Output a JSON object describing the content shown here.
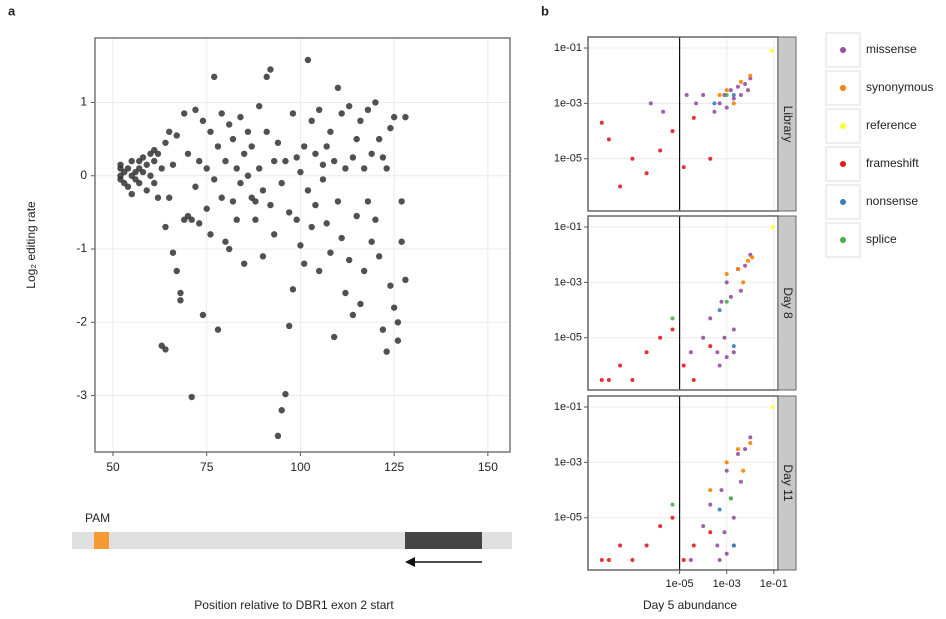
{
  "chart_data": [
    {
      "type": "scatter",
      "panel_label": "a",
      "ylabel": "Log₂ editing rate",
      "xlabel": "Position relative to DBR1 exon 2 start",
      "annotation": "PAM",
      "color": "#333333",
      "grid": true,
      "xlim": [
        45.2,
        155.9
      ],
      "ylim": [
        -3.77,
        1.88
      ],
      "xticks": [
        50,
        75,
        100,
        125,
        150
      ],
      "yticks": [
        -3,
        -2,
        -1,
        0,
        1
      ],
      "x": [
        52,
        52,
        52,
        52,
        53,
        53,
        54,
        54,
        55,
        55,
        55,
        56,
        56,
        57,
        57,
        57,
        58,
        58,
        59,
        59,
        60,
        60,
        61,
        61,
        61,
        62,
        62,
        63,
        63,
        64,
        64,
        64,
        65,
        65,
        66,
        66,
        67,
        67,
        68,
        68,
        69,
        69,
        70,
        70,
        71,
        71,
        72,
        72,
        73,
        73,
        74,
        74,
        75,
        75,
        76,
        76,
        77,
        77,
        78,
        78,
        79,
        79,
        80,
        80,
        81,
        81,
        82,
        82,
        83,
        83,
        84,
        84,
        85,
        85,
        86,
        86,
        87,
        87,
        88,
        88,
        89,
        89,
        90,
        90,
        91,
        91,
        92,
        92,
        93,
        93,
        94,
        94,
        95,
        95,
        96,
        96,
        97,
        97,
        98,
        98,
        99,
        99,
        100,
        100,
        101,
        101,
        102,
        102,
        103,
        103,
        104,
        104,
        105,
        105,
        106,
        106,
        107,
        107,
        108,
        108,
        109,
        109,
        110,
        110,
        111,
        111,
        112,
        112,
        113,
        113,
        114,
        114,
        115,
        115,
        116,
        116,
        117,
        117,
        118,
        118,
        119,
        119,
        120,
        120,
        121,
        121,
        122,
        122,
        123,
        123,
        124,
        124,
        125,
        125,
        126,
        126,
        127,
        127,
        128,
        128
      ],
      "values": [
        0.1,
        0,
        -0.05,
        0.15,
        0.05,
        -0.1,
        0.1,
        -0.15,
        0,
        0.2,
        -0.25,
        0.05,
        -0.05,
        0.1,
        0.2,
        -0.1,
        0.25,
        0.05,
        -0.2,
        0.15,
        0.3,
        0,
        0.35,
        -0.1,
        0.2,
        0.3,
        -0.3,
        -2.32,
        0.1,
        -2.37,
        0.45,
        -0.7,
        0.6,
        -0.3,
        -1.05,
        0.15,
        -1.3,
        0.55,
        -1.6,
        -1.7,
        0.85,
        -0.6,
        -0.55,
        0.3,
        -3.02,
        -0.6,
        0.9,
        -0.15,
        0.2,
        -0.65,
        -1.9,
        0.75,
        -0.45,
        0.1,
        0.6,
        -0.8,
        1.35,
        -0.05,
        -2.1,
        0.4,
        -0.3,
        0.85,
        0.2,
        -0.9,
        0.7,
        -1,
        0.5,
        -0.35,
        0.1,
        -0.6,
        0.8,
        -0.1,
        0.3,
        -1.2,
        0.6,
        0,
        -0.3,
        0.4,
        -0.6,
        -0.35,
        0.95,
        0.1,
        -0.2,
        -1.1,
        1.35,
        0.6,
        1.45,
        -0.4,
        0.2,
        -0.8,
        -3.55,
        0.45,
        -3.2,
        -0.1,
        -2.98,
        0.2,
        -2.05,
        -0.5,
        0.85,
        -1.55,
        -0.6,
        0.25,
        0.05,
        -0.95,
        0.4,
        -1.2,
        1.58,
        -0.2,
        0.75,
        -0.7,
        0.3,
        -0.4,
        0.9,
        -1.3,
        0.15,
        -0.05,
        -0.65,
        0.4,
        -1.05,
        0.6,
        -2.2,
        0.2,
        1.2,
        -0.35,
        0.85,
        -0.85,
        -1.6,
        0.1,
        0.95,
        -1.15,
        -1.9,
        0.25,
        0.5,
        -0.55,
        -1.75,
        0.75,
        -1.3,
        0.1,
        0.9,
        -0.35,
        -0.9,
        0.3,
        1,
        -0.6,
        0.5,
        -1.1,
        0.25,
        -2.1,
        -2.4,
        0.1,
        -1.5,
        0.65,
        0.8,
        -1.8,
        -2,
        -2.25,
        -0.35,
        -0.9,
        -1.42,
        0.8
      ]
    },
    {
      "type": "scatter",
      "panel_label": "b",
      "xlabel": "Day 5 abundance",
      "log_x": true,
      "log_y": true,
      "grid": true,
      "xlim": [
        1.3e-09,
        0.15
      ],
      "ylim": [
        1.3e-07,
        0.25
      ],
      "xticks": [
        {
          "value": 1e-05,
          "label": "1e-05"
        },
        {
          "value": 0.001,
          "label": "1e-03"
        },
        {
          "value": 0.1,
          "label": "1e-01"
        }
      ],
      "yticks": [
        {
          "value": 1e-05,
          "label": "1e-05"
        },
        {
          "value": 0.001,
          "label": "1e-03"
        },
        {
          "value": 0.1,
          "label": "1e-01"
        }
      ],
      "vline": 1e-05,
      "series": [
        {
          "name": "missense",
          "color": "#984ea3"
        },
        {
          "name": "synonymous",
          "color": "#ff7f00"
        },
        {
          "name": "reference",
          "color": "#ffff33"
        },
        {
          "name": "frameshift",
          "color": "#e41a1c"
        },
        {
          "name": "nonsense",
          "color": "#377eb8"
        },
        {
          "name": "splice",
          "color": "#4daf4a"
        }
      ],
      "facets": [
        {
          "label": "Library",
          "series": [
            {
              "x": [
                0.0003,
                0.0005,
                0.0008,
                0.001,
                0.0015,
                0.002,
                0.003,
                0.004,
                0.006,
                0.008,
                0.01,
                2e-05,
                5e-05,
                0.0001,
                6e-07,
                2e-06
              ],
              "values": [
                0.0005,
                0.001,
                0.002,
                0.0007,
                0.003,
                0.0015,
                0.004,
                0.002,
                0.005,
                0.003,
                0.008,
                0.002,
                0.001,
                0.002,
                0.001,
                0.0005
              ]
            },
            {
              "x": [
                0.0005,
                0.001,
                0.002,
                0.004,
                0.01
              ],
              "values": [
                0.002,
                0.003,
                0.001,
                0.006,
                0.01
              ]
            },
            {
              "x": [
                0.08
              ],
              "values": [
                0.08
              ]
            },
            {
              "x": [
                5e-09,
                1e-08,
                3e-08,
                1e-07,
                4e-07,
                1.5e-06,
                5e-06,
                1.5e-05,
                4e-05,
                0.0002
              ],
              "values": [
                0.0002,
                5e-05,
                1e-06,
                1e-05,
                3e-06,
                2e-05,
                0.0001,
                5e-06,
                0.0003,
                1e-05
              ]
            },
            {
              "x": [
                0.0003,
                0.002
              ],
              "values": [
                0.001,
                0.002
              ]
            },
            {
              "x": [
                0.001
              ],
              "values": [
                0.002
              ]
            }
          ]
        },
        {
          "label": "Day 8",
          "series": [
            {
              "x": [
                3e-05,
                0.0001,
                0.0002,
                0.0004,
                0.0006,
                0.0008,
                0.001,
                0.0015,
                0.002,
                0.003,
                0.004,
                0.006,
                0.01,
                0.0005,
                0.002,
                0.001
              ],
              "values": [
                3e-06,
                1e-05,
                5e-05,
                3e-06,
                0.0002,
                1e-05,
                0.001,
                0.0003,
                2e-05,
                0.003,
                0.0005,
                0.004,
                0.01,
                1e-06,
                3e-06,
                2e-06
              ]
            },
            {
              "x": [
                0.001,
                0.003,
                0.005,
                0.008,
                0.012
              ],
              "values": [
                0.002,
                0.003,
                0.001,
                0.006,
                0.008
              ]
            },
            {
              "x": [
                0.09
              ],
              "values": [
                0.1
              ]
            },
            {
              "x": [
                5e-09,
                1e-08,
                3e-08,
                1e-07,
                4e-07,
                1.5e-06,
                5e-06,
                1.5e-05,
                4e-05,
                0.0002
              ],
              "values": [
                3e-07,
                3e-07,
                1e-06,
                3e-07,
                3e-06,
                1e-05,
                2e-05,
                1e-06,
                3e-07,
                5e-06
              ]
            },
            {
              "x": [
                0.0005,
                0.002
              ],
              "values": [
                0.0001,
                5e-06
              ]
            },
            {
              "x": [
                5e-06,
                0.001
              ],
              "values": [
                5e-05,
                0.0002
              ]
            }
          ]
        },
        {
          "label": "Day 11",
          "series": [
            {
              "x": [
                3e-05,
                0.0001,
                0.0002,
                0.0004,
                0.0006,
                0.0008,
                0.001,
                0.0015,
                0.002,
                0.003,
                0.004,
                0.006,
                0.01,
                0.0005,
                0.002,
                0.001
              ],
              "values": [
                3e-07,
                5e-06,
                3e-05,
                1e-06,
                0.0001,
                3e-06,
                0.0005,
                5e-05,
                1e-05,
                0.002,
                0.0002,
                0.003,
                0.008,
                3e-07,
                1e-06,
                5e-07
              ]
            },
            {
              "x": [
                0.0002,
                0.001,
                0.003,
                0.005,
                0.01
              ],
              "values": [
                0.0001,
                0.001,
                0.003,
                0.0005,
                0.005
              ]
            },
            {
              "x": [
                0.09
              ],
              "values": [
                0.1
              ]
            },
            {
              "x": [
                5e-09,
                1e-08,
                3e-08,
                1e-07,
                4e-07,
                1.5e-06,
                5e-06,
                1.5e-05,
                4e-05,
                0.0002
              ],
              "values": [
                3e-07,
                3e-07,
                1e-06,
                3e-07,
                1e-06,
                5e-06,
                1e-05,
                3e-07,
                1e-06,
                3e-06
              ]
            },
            {
              "x": [
                0.0005,
                0.002
              ],
              "values": [
                2e-05,
                1e-06
              ]
            },
            {
              "x": [
                5e-06,
                0.0015
              ],
              "values": [
                3e-05,
                5e-05
              ]
            }
          ]
        }
      ]
    }
  ]
}
